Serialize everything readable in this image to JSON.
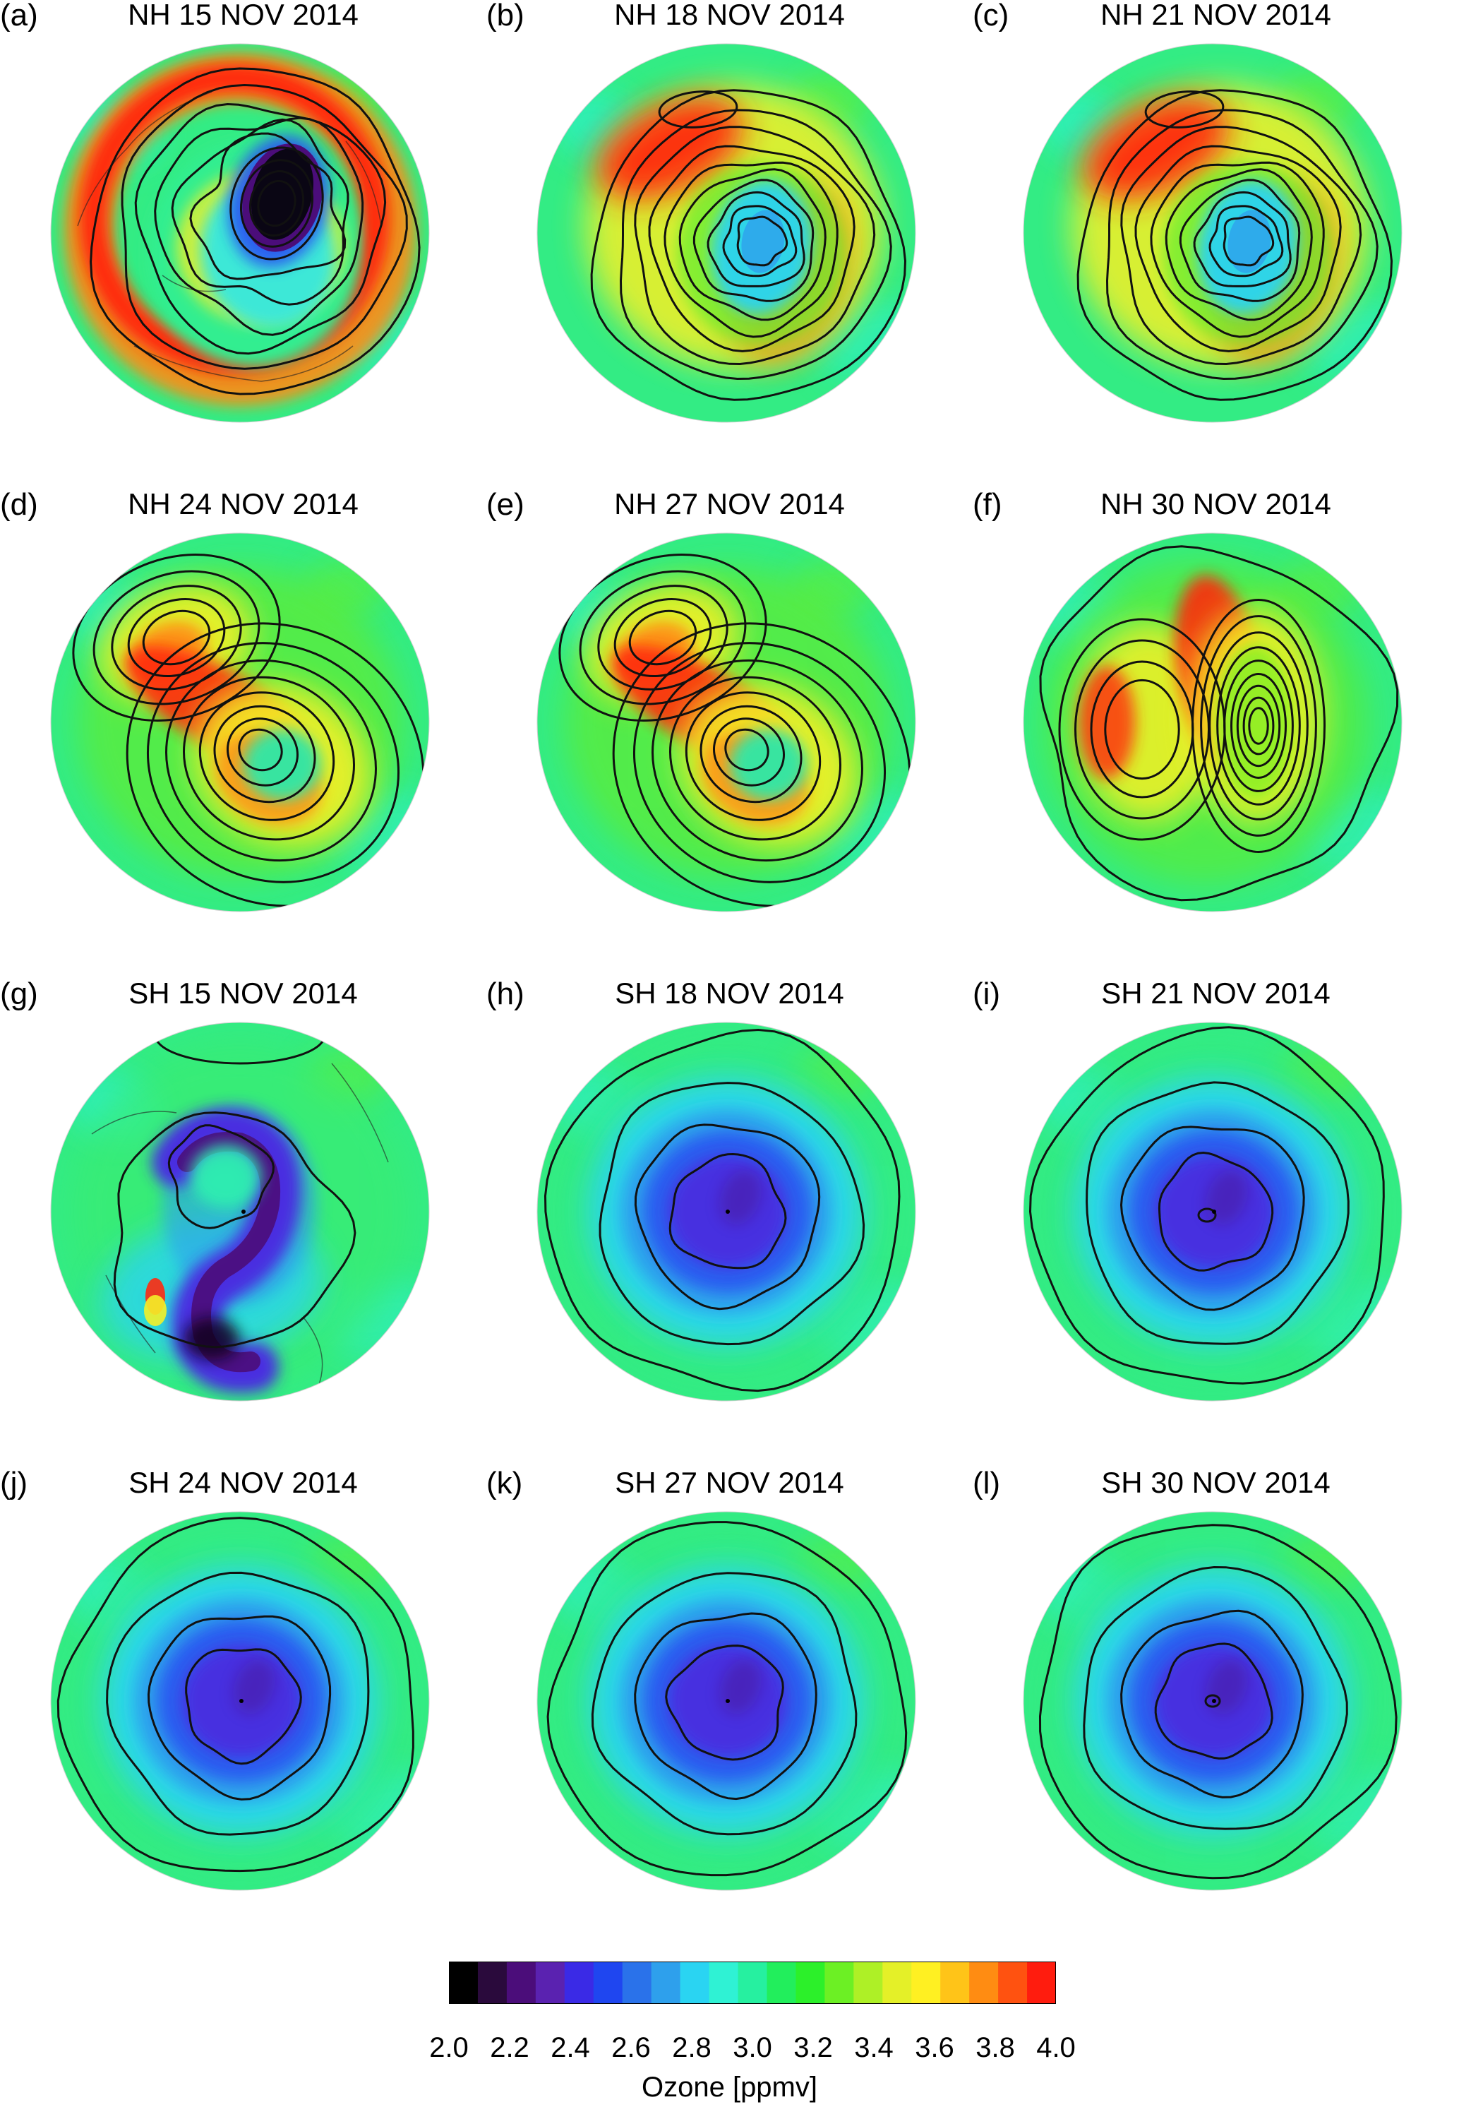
{
  "panels": [
    {
      "letter": "(a)",
      "title": "NH 15 NOV 2014",
      "hemisphere": "NH",
      "regime": "nh-ring"
    },
    {
      "letter": "(b)",
      "title": "NH 18 NOV 2014",
      "hemisphere": "NH",
      "regime": "nh-a"
    },
    {
      "letter": "(c)",
      "title": "NH 21 NOV 2014",
      "hemisphere": "NH",
      "regime": "nh-a"
    },
    {
      "letter": "(d)",
      "title": "NH 24 NOV 2014",
      "hemisphere": "NH",
      "regime": "nh-b"
    },
    {
      "letter": "(e)",
      "title": "NH 27 NOV 2014",
      "hemisphere": "NH",
      "regime": "nh-b"
    },
    {
      "letter": "(f)",
      "title": "NH 30 NOV 2014",
      "hemisphere": "NH",
      "regime": "nh-c"
    },
    {
      "letter": "(g)",
      "title": "SH 15 NOV 2014",
      "hemisphere": "SH",
      "regime": "sh-spiral"
    },
    {
      "letter": "(h)",
      "title": "SH 18 NOV 2014",
      "hemisphere": "SH",
      "regime": "sh-vortex"
    },
    {
      "letter": "(i)",
      "title": "SH 21 NOV 2014",
      "hemisphere": "SH",
      "regime": "sh-vortex"
    },
    {
      "letter": "(j)",
      "title": "SH 24 NOV 2014",
      "hemisphere": "SH",
      "regime": "sh-vortex"
    },
    {
      "letter": "(k)",
      "title": "SH 27 NOV 2014",
      "hemisphere": "SH",
      "regime": "sh-vortex"
    },
    {
      "letter": "(l)",
      "title": "SH 30 NOV 2014",
      "hemisphere": "SH",
      "regime": "sh-vortex"
    }
  ],
  "colorbar": {
    "title": "Ozone [ppmv]",
    "range": [
      2.0,
      4.0
    ],
    "ticks": [
      "2.0",
      "2.2",
      "2.4",
      "2.6",
      "2.8",
      "3.0",
      "3.2",
      "3.4",
      "3.6",
      "3.8",
      "4.0"
    ],
    "colors": [
      "#000000",
      "#2a0a3c",
      "#4b0d7a",
      "#5a22b0",
      "#3a2ae6",
      "#1f46f0",
      "#2a72ea",
      "#2ea0ec",
      "#2ad4f2",
      "#2ff2d4",
      "#26f0a0",
      "#22ee5c",
      "#2cf02a",
      "#6cf024",
      "#aef026",
      "#e4f028",
      "#fff022",
      "#ffc418",
      "#ff8c12",
      "#ff5210",
      "#ff1c0e"
    ]
  }
}
